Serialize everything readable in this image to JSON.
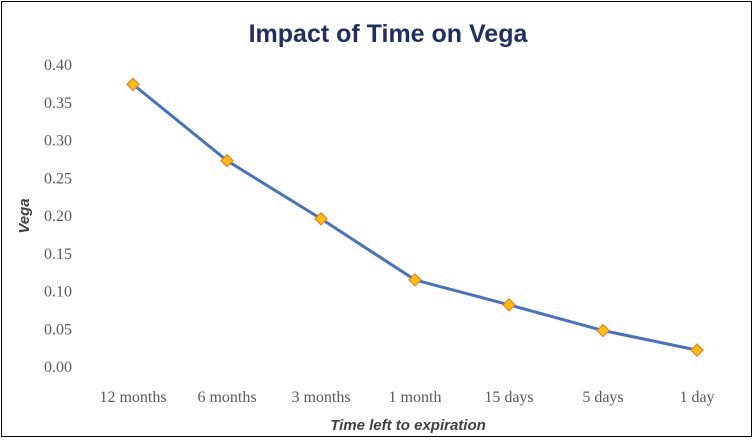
{
  "chart_data": {
    "type": "line",
    "title": "Impact of Time on Vega",
    "xlabel": "Time left to expiration",
    "ylabel": "Vega",
    "categories": [
      "12 months",
      "6 months",
      "3 months",
      "1 month",
      "15 days",
      "5 days",
      "1 day"
    ],
    "series": [
      {
        "values": [
          0.373,
          0.272,
          0.195,
          0.114,
          0.081,
          0.047,
          0.021
        ]
      }
    ],
    "ylim": [
      0,
      0.4
    ],
    "yticks": [
      "0.00",
      "0.05",
      "0.10",
      "0.15",
      "0.20",
      "0.25",
      "0.30",
      "0.35",
      "0.40"
    ],
    "grid": false,
    "legend": "none",
    "line_color": "#4472c4",
    "marker": "diamond",
    "marker_fill": "#ffc000",
    "marker_stroke": "#ed7d31",
    "title_color": "#1f2f66"
  }
}
